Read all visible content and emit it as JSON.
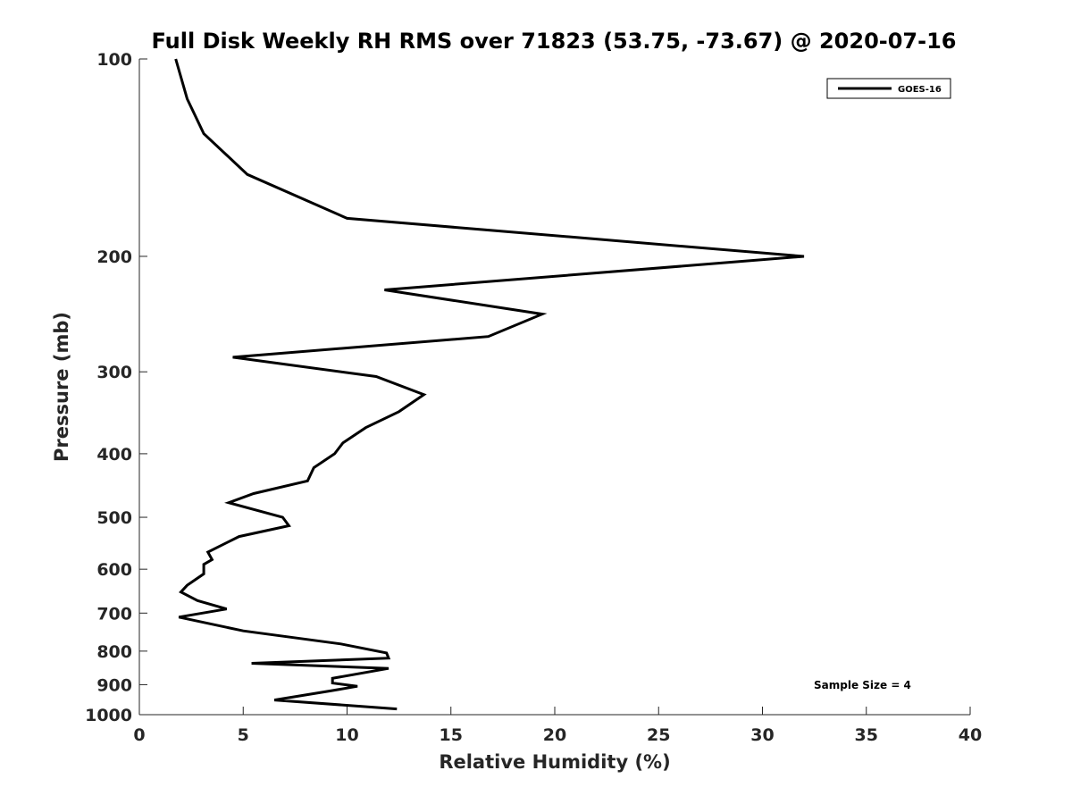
{
  "chart_data": {
    "type": "line",
    "title": "Full Disk Weekly RH RMS over 71823 (53.75, -73.67) @ 2020-07-16",
    "xlabel": "Relative Humidity (%)",
    "ylabel": "Pressure (mb)",
    "xlim": [
      0,
      40
    ],
    "ylim": [
      100,
      1000
    ],
    "y_scale": "log",
    "y_reversed": true,
    "xticks": [
      0,
      5,
      10,
      15,
      20,
      25,
      30,
      35,
      40
    ],
    "yticks": [
      100,
      200,
      300,
      400,
      500,
      600,
      700,
      800,
      900,
      1000
    ],
    "grid": false,
    "legend_position": "top-right",
    "series": [
      {
        "name": "GOES-16",
        "color": "#000000",
        "x": [
          1.75,
          2.3,
          3.1,
          5.2,
          10.0,
          32.0,
          11.8,
          19.4,
          16.8,
          4.5,
          11.4,
          13.7,
          12.5,
          10.9,
          9.8,
          9.4,
          8.4,
          8.1,
          5.5,
          4.3,
          6.9,
          7.2,
          4.8,
          3.3,
          3.5,
          3.1,
          3.1,
          2.3,
          2.0,
          2.8,
          4.2,
          1.9,
          5.0,
          9.7,
          11.9,
          12.0,
          5.4,
          12.0,
          9.3,
          9.3,
          10.5,
          9.2,
          6.5,
          12.4
        ],
        "y": [
          100,
          115,
          130,
          150,
          175,
          200,
          225,
          245,
          265,
          285,
          305,
          325,
          345,
          365,
          385,
          400,
          420,
          440,
          460,
          475,
          500,
          515,
          535,
          565,
          580,
          590,
          610,
          635,
          650,
          670,
          690,
          710,
          745,
          780,
          805,
          820,
          835,
          850,
          880,
          895,
          905,
          920,
          950,
          980
        ]
      }
    ],
    "annotations": [
      "Sample Size = 4"
    ]
  }
}
